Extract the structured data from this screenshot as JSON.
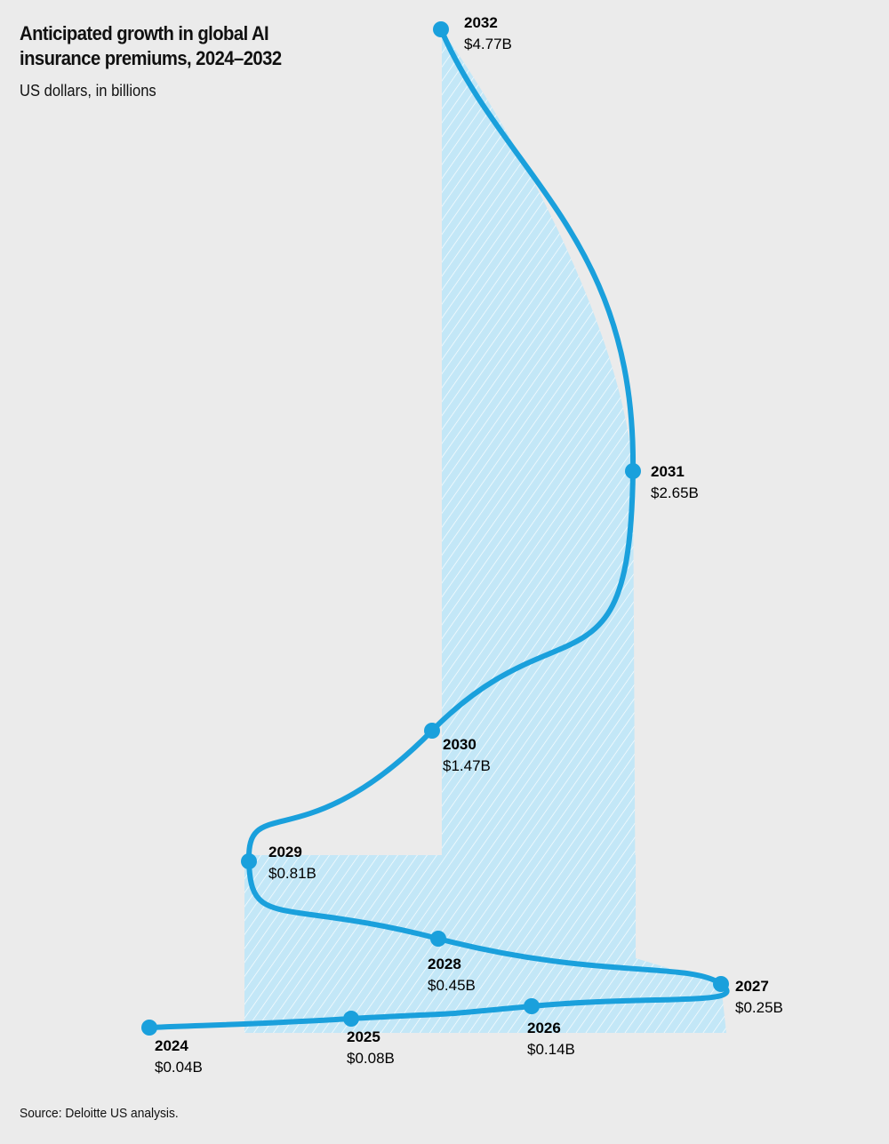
{
  "chart_data": {
    "type": "line",
    "title": "Anticipated growth in global AI insurance premiums, 2024–2032",
    "subtitle": "US dollars, in billions",
    "source": "Source: Deloitte US analysis.",
    "points": [
      {
        "year": "2024",
        "value": 0.04,
        "label": "$0.04B"
      },
      {
        "year": "2025",
        "value": 0.08,
        "label": "$0.08B"
      },
      {
        "year": "2026",
        "value": 0.14,
        "label": "$0.14B"
      },
      {
        "year": "2027",
        "value": 0.25,
        "label": "$0.25B"
      },
      {
        "year": "2028",
        "value": 0.45,
        "label": "$0.45B"
      },
      {
        "year": "2029",
        "value": 0.81,
        "label": "$0.81B"
      },
      {
        "year": "2030",
        "value": 1.47,
        "label": "$1.47B"
      },
      {
        "year": "2031",
        "value": 2.65,
        "label": "$2.65B"
      },
      {
        "year": "2032",
        "value": 4.77,
        "label": "$4.77B"
      }
    ],
    "colors": {
      "line": "#1aa0dc",
      "fill": "#bfe6f7",
      "background": "#ebebeb"
    }
  }
}
